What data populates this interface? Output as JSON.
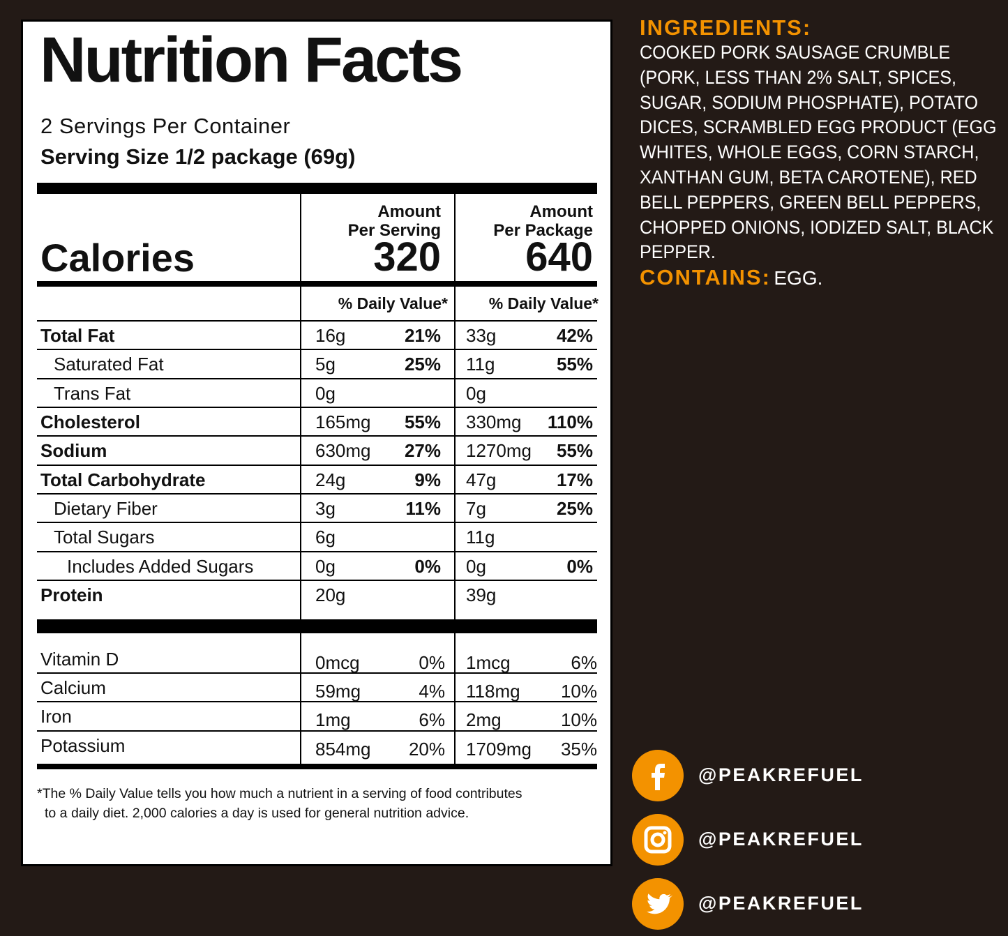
{
  "label": {
    "title": "Nutrition Facts",
    "servings_per_container": "2 Servings Per Container",
    "serving_size": "Serving Size 1/2 package (69g)",
    "calories_label": "Calories",
    "columns": [
      {
        "amount": "Amount",
        "basis": "Per Serving",
        "calories": 320,
        "daily_value_header": "% Daily Value*"
      },
      {
        "amount": "Amount",
        "basis": "Per Package",
        "calories": 640,
        "daily_value_header": "% Daily Value*"
      }
    ],
    "nutrients": [
      {
        "name": "Total Fat",
        "per_serving": [
          "16g",
          "21%"
        ],
        "per_package": [
          "33g",
          "42%"
        ]
      },
      {
        "name": "Saturated Fat",
        "per_serving": [
          "5g",
          "25%"
        ],
        "per_package": [
          "11g",
          "55%"
        ]
      },
      {
        "name": "Trans Fat",
        "per_serving": [
          "0g",
          null
        ],
        "per_package": [
          "0g",
          null
        ]
      },
      {
        "name": "Cholesterol",
        "per_serving": [
          "165mg",
          "55%"
        ],
        "per_package": [
          "330mg",
          "110%"
        ]
      },
      {
        "name": "Sodium",
        "per_serving": [
          "630mg",
          "27%"
        ],
        "per_package": [
          "1270mg",
          "55%"
        ]
      },
      {
        "name": "Total Carbohydrate",
        "per_serving": [
          "24g",
          "9%"
        ],
        "per_package": [
          "47g",
          "17%"
        ]
      },
      {
        "name": "Dietary Fiber",
        "per_serving": [
          "3g",
          "11%"
        ],
        "per_package": [
          "7g",
          "25%"
        ]
      },
      {
        "name": "Total Sugars",
        "per_serving": [
          "6g",
          null
        ],
        "per_package": [
          "11g",
          null
        ]
      },
      {
        "name": "Includes Added Sugars",
        "per_serving": [
          "0g",
          "0%"
        ],
        "per_package": [
          "0g",
          "0%"
        ]
      },
      {
        "name": "Protein",
        "per_serving": [
          "20g",
          null
        ],
        "per_package": [
          "39g",
          null
        ]
      }
    ],
    "vitamins_minerals": [
      {
        "name": "Vitamin D",
        "per_serving": [
          "0mcg",
          "0%"
        ],
        "per_package": [
          "1mcg",
          "6%"
        ]
      },
      {
        "name": "Calcium",
        "per_serving": [
          "59mg",
          "4%"
        ],
        "per_package": [
          "118mg",
          "10%"
        ]
      },
      {
        "name": "Iron",
        "per_serving": [
          "1mg",
          "6%"
        ],
        "per_package": [
          "2mg",
          "10%"
        ]
      },
      {
        "name": "Potassium",
        "per_serving": [
          "854mg",
          "20%"
        ],
        "per_package": [
          "1709mg",
          "35%"
        ]
      }
    ],
    "footnote": "*The % Daily Value tells you how much a nutrient in a  serving of food contributes to a daily diet. 2,000 calories  a day is used for general nutrition advice."
  },
  "ingredients": {
    "heading": "INGREDIENTS:",
    "text": "COOKED PORK SAUSAGE CRUMBLE (PORK, LESS THAN 2% SALT, SPICES, SUGAR, SODIUM PHOSPHATE), POTATO DICES, SCRAMBLED EGG PRODUCT (EGG WHITES, WHOLE EGGS, CORN STARCH, XANTHAN GUM, BETA CAROTENE), RED BELL PEPPERS, GREEN BELL PEPPERS, CHOPPED ONIONS, IODIZED SALT, BLACK PEPPER.",
    "contains_heading": "CONTAINS:",
    "contains_text": "EGG."
  },
  "social_handles": [
    "@PEAKREFUEL",
    "@PEAKREFUEL",
    "@PEAKREFUEL"
  ]
}
